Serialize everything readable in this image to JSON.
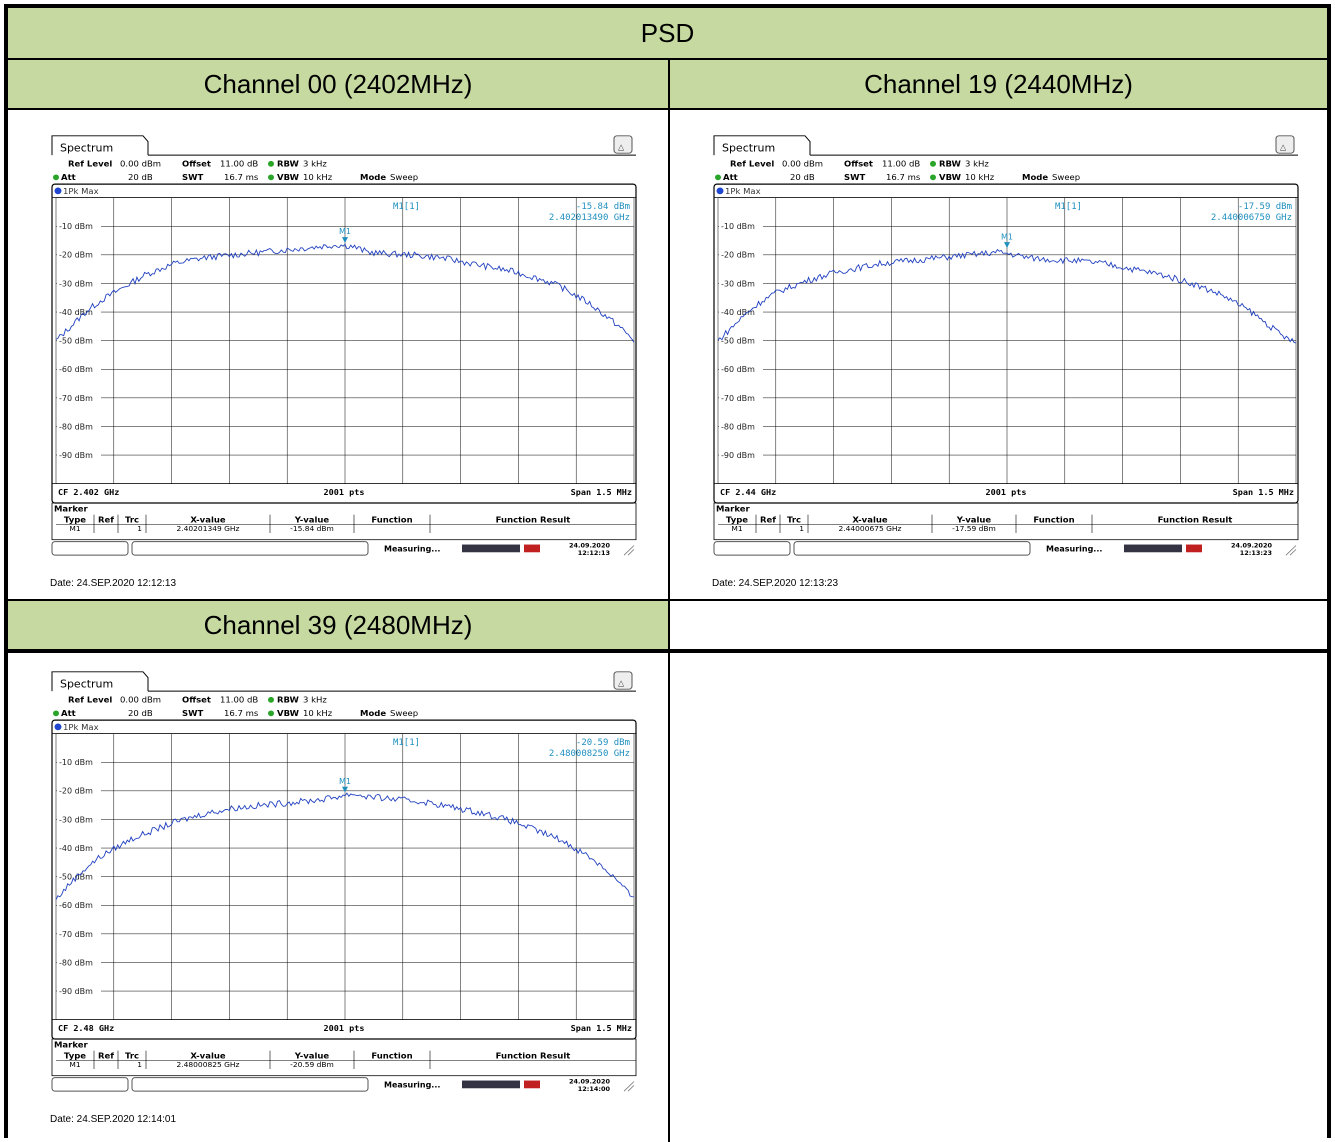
{
  "table": {
    "title": "PSD",
    "cells": [
      {
        "header": "Channel 00 (2402MHz)",
        "date": "Date: 24.SEP.2020 12:12:13"
      },
      {
        "header": "Channel 19 (2440MHz)",
        "date": "Date: 24.SEP.2020 12:13:23"
      },
      {
        "header": "Channel 39 (2480MHz)",
        "date": "Date: 24.SEP.2020 12:14:01"
      }
    ]
  },
  "analyzer_common": {
    "tab": "Spectrum",
    "ref_level_label": "Ref Level",
    "ref_level_value": "0.00 dBm",
    "offset_label": "Offset",
    "offset_value": "11.00 dB",
    "rbw_label": "RBW",
    "rbw_value": "3 kHz",
    "att_label": "Att",
    "att_value": "20 dB",
    "swt_label": "SWT",
    "swt_value": "16.7 ms",
    "vbw_label": "VBW",
    "vbw_value": "10 kHz",
    "mode_label": "Mode",
    "mode_value": "Sweep",
    "trace_label": "1Pk Max",
    "marker_label": "M1[1]",
    "marker_name": "M1",
    "y_ticks": [
      "-10 dBm",
      "-20 dBm",
      "-30 dBm",
      "-40 dBm",
      "-50 dBm",
      "-60 dBm",
      "-70 dBm",
      "-80 dBm",
      "-90 dBm"
    ],
    "points": "2001 pts",
    "span": "Span 1.5 MHz",
    "marker_table_title": "Marker",
    "columns": [
      "Type",
      "Ref",
      "Trc",
      "X-value",
      "Y-value",
      "Function",
      "Function Result"
    ],
    "trc": "1",
    "status": "Measuring...",
    "status_date": "24.09.2020",
    "colors": {
      "trace": "#1f3fbf",
      "marker": "#1f8fbf",
      "header_bg": "#c6d9a0"
    }
  },
  "chart_data": [
    {
      "type": "line",
      "cf": "CF 2.402 GHz",
      "marker_value": "-15.84 dBm",
      "marker_freq": "2.402013490 GHz",
      "x_value": "2.40201349 GHz",
      "y_value": "-15.84 dBm",
      "status_time": "12:12:13",
      "ylim": [
        -100,
        0
      ],
      "marker_x": 0.5,
      "marker_y": -15.84,
      "y": [
        -50,
        -45,
        -40,
        -36,
        -33,
        -30,
        -27,
        -25,
        -23,
        -22,
        -21,
        -20.5,
        -20,
        -19.5,
        -19,
        -18.5,
        -18,
        -17.5,
        -17,
        -16.5,
        -17,
        -19,
        -19.5,
        -19.8,
        -20,
        -20.5,
        -21,
        -22,
        -23,
        -24,
        -25,
        -26,
        -27.5,
        -29,
        -31,
        -34,
        -37,
        -41,
        -45,
        -50
      ]
    },
    {
      "type": "line",
      "cf": "CF 2.44 GHz",
      "marker_value": "-17.59 dBm",
      "marker_freq": "2.440006750 GHz",
      "x_value": "2.44000675 GHz",
      "y_value": "-17.59 dBm",
      "status_time": "12:13:23",
      "ylim": [
        -100,
        0
      ],
      "marker_x": 0.5,
      "marker_y": -17.59,
      "y": [
        -50,
        -45,
        -40,
        -36,
        -33,
        -31,
        -29,
        -27.5,
        -26,
        -25,
        -24,
        -23,
        -22.5,
        -22,
        -21.5,
        -21,
        -20.5,
        -20,
        -19.5,
        -19,
        -20,
        -21,
        -21.5,
        -21.8,
        -22,
        -22.5,
        -23,
        -24,
        -25,
        -26,
        -27,
        -28.5,
        -30,
        -32,
        -34,
        -37,
        -40,
        -44,
        -48,
        -51
      ]
    },
    {
      "type": "line",
      "cf": "CF 2.48 GHz",
      "marker_value": "-20.59 dBm",
      "marker_freq": "2.480008250 GHz",
      "x_value": "2.48000825 GHz",
      "y_value": "-20.59 dBm",
      "status_time": "12:14:00",
      "ylim": [
        -100,
        0
      ],
      "marker_x": 0.5,
      "marker_y": -20.59,
      "y": [
        -58,
        -52,
        -47,
        -43,
        -40,
        -37,
        -35,
        -33,
        -31,
        -29.5,
        -28,
        -27,
        -26,
        -25.5,
        -25,
        -24.5,
        -24,
        -23.5,
        -23,
        -22,
        -21,
        -22,
        -22.5,
        -23,
        -23.5,
        -24,
        -25,
        -26,
        -27,
        -28,
        -29.5,
        -31,
        -33,
        -35,
        -37,
        -40,
        -43,
        -47,
        -52,
        -58
      ]
    }
  ]
}
